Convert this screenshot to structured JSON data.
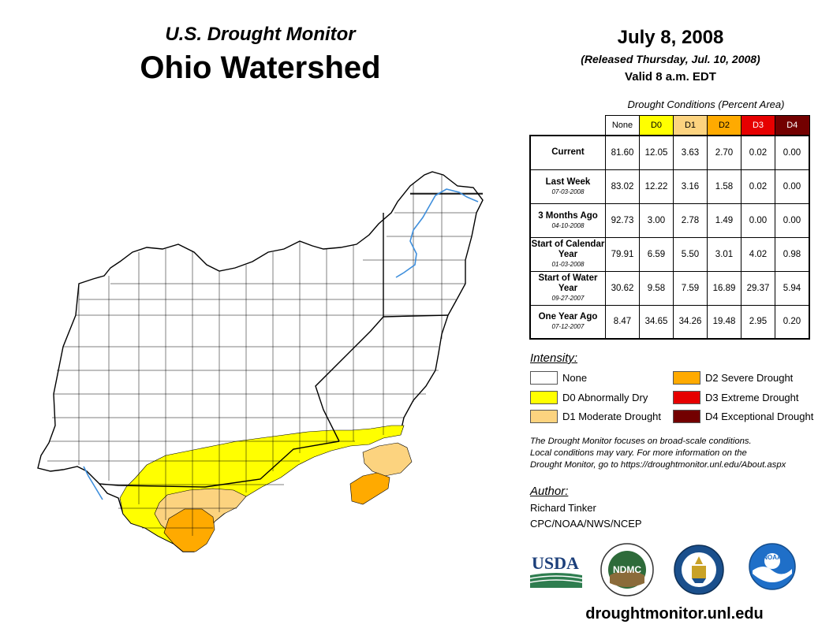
{
  "header": {
    "subtitle": "U.S. Drought Monitor",
    "title": "Ohio Watershed",
    "date": "July 8, 2008",
    "released": "(Released Thursday, Jul. 10, 2008)",
    "valid": "Valid 8 a.m. EDT"
  },
  "table": {
    "caption": "Drought Conditions (Percent Area)",
    "columns": [
      "None",
      "D0",
      "D1",
      "D2",
      "D3",
      "D4"
    ],
    "rows": [
      {
        "label": "Current",
        "sub": "",
        "values": [
          "81.60",
          "12.05",
          "3.63",
          "2.70",
          "0.02",
          "0.00"
        ]
      },
      {
        "label": "Last Week",
        "sub": "07-03-2008",
        "values": [
          "83.02",
          "12.22",
          "3.16",
          "1.58",
          "0.02",
          "0.00"
        ]
      },
      {
        "label": "3 Months Ago",
        "sub": "04-10-2008",
        "values": [
          "92.73",
          "3.00",
          "2.78",
          "1.49",
          "0.00",
          "0.00"
        ]
      },
      {
        "label": "Start of Calendar Year",
        "sub": "01-03-2008",
        "values": [
          "79.91",
          "6.59",
          "5.50",
          "3.01",
          "4.02",
          "0.98"
        ]
      },
      {
        "label": "Start of Water Year",
        "sub": "09-27-2007",
        "values": [
          "30.62",
          "9.58",
          "7.59",
          "16.89",
          "29.37",
          "5.94"
        ]
      },
      {
        "label": "One Year Ago",
        "sub": "07-12-2007",
        "values": [
          "8.47",
          "34.65",
          "34.26",
          "19.48",
          "2.95",
          "0.20"
        ]
      }
    ]
  },
  "legend": {
    "heading": "Intensity:",
    "items": [
      {
        "label": "None",
        "color": "#ffffff"
      },
      {
        "label": "D0 Abnormally Dry",
        "color": "#ffff00"
      },
      {
        "label": "D1 Moderate Drought",
        "color": "#fcd37f"
      },
      {
        "label": "D2 Severe Drought",
        "color": "#ffaa00"
      },
      {
        "label": "D3 Extreme Drought",
        "color": "#e60000"
      },
      {
        "label": "D4 Exceptional Drought",
        "color": "#730000"
      }
    ]
  },
  "note": {
    "line1": "The Drought Monitor focuses on broad-scale conditions.",
    "line2": "Local conditions may vary. For more information on the",
    "line3": "Drought Monitor, go to https://droughtmonitor.unl.edu/About.aspx"
  },
  "author": {
    "heading": "Author:",
    "name": "Richard Tinker",
    "org": "CPC/NOAA/NWS/NCEP"
  },
  "logos": {
    "usda": "USDA",
    "ndmc": "NDMC",
    "noaa": "NOAA",
    "ndmc_ring": "NATIONAL DROUGHT MITIGATION CENTER · UNIVERSITY OF NEBRASKA"
  },
  "footer": {
    "url": "droughtmonitor.unl.edu"
  },
  "colors": {
    "none": "#ffffff",
    "d0": "#ffff00",
    "d1": "#fcd37f",
    "d2": "#ffaa00",
    "d3": "#e60000",
    "d4": "#730000",
    "river": "#3f8fdc"
  }
}
